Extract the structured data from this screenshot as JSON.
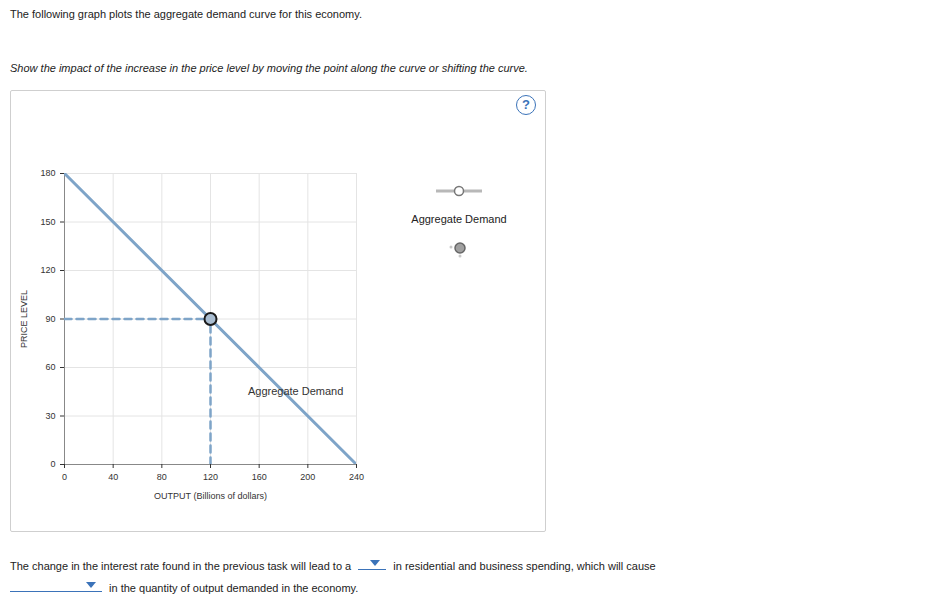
{
  "intro": "The following graph plots the aggregate demand curve for this economy.",
  "instruction": "Show the impact of the increase in the price level by moving the point along the curve or shifting the curve.",
  "help_icon": "?",
  "chart_data": {
    "type": "line",
    "x": [
      0,
      240
    ],
    "series": [
      {
        "name": "Aggregate Demand",
        "color": "#7ea4c8",
        "values": [
          180,
          0
        ]
      }
    ],
    "point": {
      "x": 120,
      "y": 90
    },
    "annotations": [
      {
        "text": "Aggregate Demand",
        "x": 190,
        "y": 45
      }
    ],
    "xlabel": "OUTPUT (Billions of dollars)",
    "ylabel": "PRICE LEVEL",
    "xlim": [
      0,
      240
    ],
    "xticks": [
      0,
      40,
      80,
      120,
      160,
      200,
      240
    ],
    "ylim": [
      0,
      180
    ],
    "yticks": [
      0,
      30,
      60,
      90,
      120,
      150,
      180
    ],
    "grid": true,
    "legend": "top-right"
  },
  "question": {
    "before": "The change in the interest rate found in the previous task will lead to a",
    "middle": "in residential and business spending, which will cause",
    "after": "in the quantity of output demanded in the economy."
  }
}
